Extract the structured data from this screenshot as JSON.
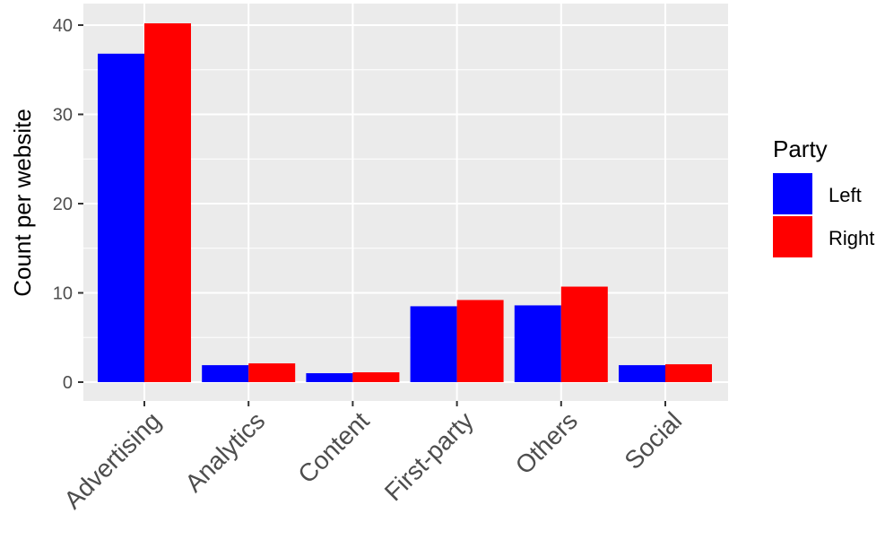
{
  "chart_data": {
    "type": "bar",
    "ylabel": "Count per website",
    "categories": [
      "Advertising",
      "Analytics",
      "Content",
      "First-party",
      "Others",
      "Social"
    ],
    "series": [
      {
        "name": "Left",
        "color": "#0000FF",
        "values": [
          36.8,
          1.9,
          1.0,
          8.5,
          8.6,
          1.9
        ]
      },
      {
        "name": "Right",
        "color": "#FF0000",
        "values": [
          40.2,
          2.1,
          1.1,
          9.2,
          10.7,
          2.0
        ]
      }
    ],
    "ylim": [
      -2,
      42
    ],
    "yticks": [
      0,
      10,
      20,
      30,
      40
    ],
    "ytick_labels": [
      "0",
      "10",
      "20",
      "30",
      "40"
    ],
    "legend": {
      "title": "Party",
      "position": "right"
    },
    "grid": true
  }
}
